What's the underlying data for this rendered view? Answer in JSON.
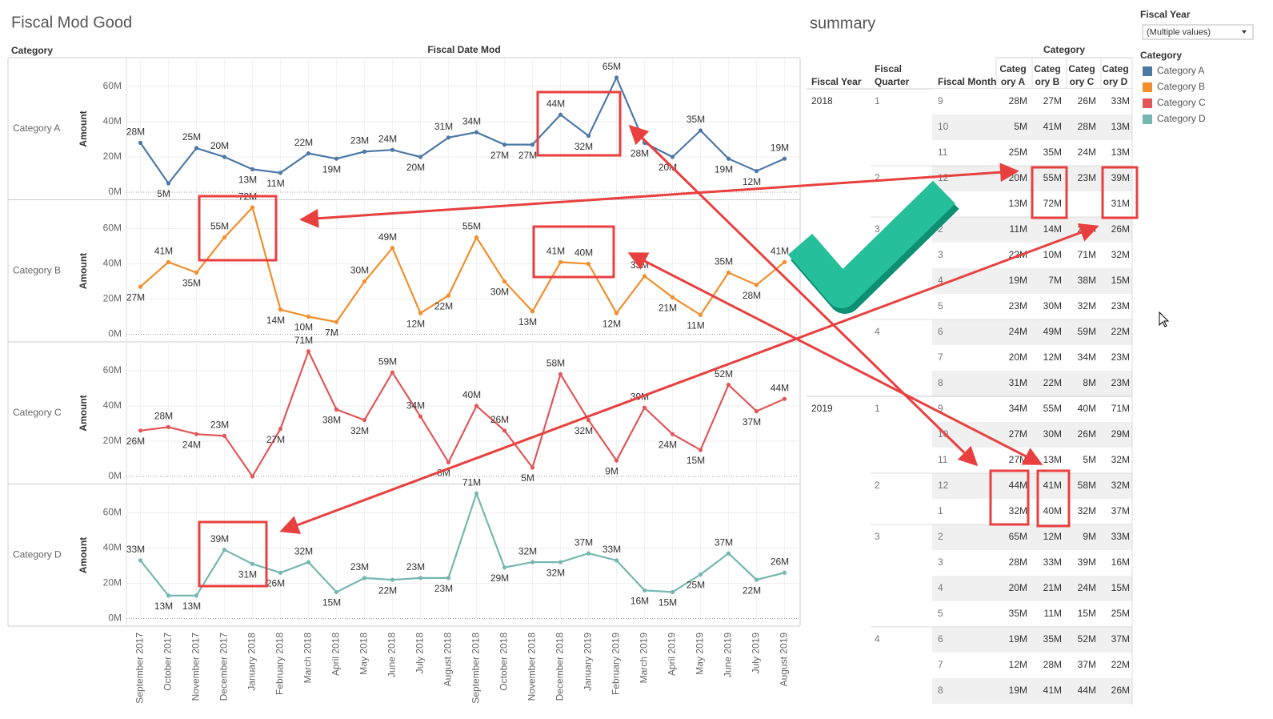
{
  "header": {
    "title": "Fiscal Mod Good",
    "row_header": "Category",
    "column_header": "Fiscal Date Mod"
  },
  "chart_data": [
    {
      "type": "line",
      "title": "Category A",
      "y_label": "Amount",
      "color": "#4e79a7",
      "categories": [
        "September 2017",
        "October 2017",
        "November 2017",
        "December 2017",
        "January 2018",
        "February 2018",
        "March 2018",
        "April 2018",
        "May 2018",
        "June 2018",
        "July 2018",
        "August 2018",
        "September 2018",
        "October 2018",
        "November 2018",
        "December 2018",
        "January 2019",
        "February 2019",
        "March 2019",
        "April 2019",
        "May 2019",
        "June 2019",
        "July 2019",
        "August 2019"
      ],
      "values": [
        28,
        5,
        25,
        20,
        13,
        11,
        22,
        19,
        23,
        24,
        20,
        31,
        34,
        27,
        27,
        44,
        32,
        65,
        28,
        20,
        35,
        19,
        12,
        19
      ],
      "value_labels": [
        "28M",
        "5M",
        "25M",
        "20M",
        "13M",
        "11M",
        "22M",
        "19M",
        "23M",
        "24M",
        "20M",
        "31M",
        "34M",
        "27M",
        "27M",
        "44M",
        "32M",
        "65M",
        "28M",
        "20M",
        "35M",
        "19M",
        "12M",
        "19M"
      ],
      "ylim": [
        0,
        75
      ],
      "yticks": [
        {
          "value": 0,
          "label": "0M"
        },
        {
          "value": 20,
          "label": "20M"
        },
        {
          "value": 40,
          "label": "40M"
        },
        {
          "value": 60,
          "label": "60M"
        }
      ]
    },
    {
      "type": "line",
      "title": "Category B",
      "y_label": "Amount",
      "color": "#f28e2b",
      "categories": [
        "September 2017",
        "October 2017",
        "November 2017",
        "December 2017",
        "January 2018",
        "February 2018",
        "March 2018",
        "April 2018",
        "May 2018",
        "June 2018",
        "July 2018",
        "August 2018",
        "September 2018",
        "October 2018",
        "November 2018",
        "December 2018",
        "January 2019",
        "February 2019",
        "March 2019",
        "April 2019",
        "May 2019",
        "June 2019",
        "July 2019",
        "August 2019"
      ],
      "values": [
        27,
        41,
        35,
        55,
        72,
        14,
        10,
        7,
        30,
        49,
        12,
        22,
        55,
        30,
        13,
        41,
        40,
        12,
        33,
        21,
        11,
        35,
        28,
        41
      ],
      "value_labels": [
        "27M",
        "41M",
        "35M",
        "55M",
        "72M",
        "14M",
        "10M",
        "7M",
        "30M",
        "49M",
        "12M",
        "22M",
        "55M",
        "30M",
        "13M",
        "41M",
        "40M",
        "12M",
        "33M",
        "21M",
        "11M",
        "35M",
        "28M",
        "41M"
      ],
      "ylim": [
        0,
        75
      ],
      "yticks": [
        {
          "value": 0,
          "label": "0M"
        },
        {
          "value": 20,
          "label": "20M"
        },
        {
          "value": 40,
          "label": "40M"
        },
        {
          "value": 60,
          "label": "60M"
        }
      ]
    },
    {
      "type": "line",
      "title": "Category C",
      "y_label": "Amount",
      "color": "#e15759",
      "categories": [
        "September 2017",
        "October 2017",
        "November 2017",
        "December 2017",
        "January 2018",
        "February 2018",
        "March 2018",
        "April 2018",
        "May 2018",
        "June 2018",
        "July 2018",
        "August 2018",
        "September 2018",
        "October 2018",
        "November 2018",
        "December 2018",
        "January 2019",
        "February 2019",
        "March 2019",
        "April 2019",
        "May 2019",
        "June 2019",
        "July 2019",
        "August 2019"
      ],
      "values": [
        26,
        28,
        24,
        23,
        0,
        27,
        71,
        38,
        32,
        59,
        34,
        8,
        40,
        26,
        5,
        58,
        32,
        9,
        39,
        24,
        15,
        52,
        37,
        44
      ],
      "value_labels": [
        "26M",
        "28M",
        "24M",
        "23M",
        null,
        "27M",
        "71M",
        "38M",
        "32M",
        "59M",
        "34M",
        "8M",
        "40M",
        "26M",
        "5M",
        "58M",
        "32M",
        "9M",
        "39M",
        "24M",
        "15M",
        "52M",
        "37M",
        "44M"
      ],
      "ylim": [
        0,
        75
      ],
      "yticks": [
        {
          "value": 0,
          "label": "0M"
        },
        {
          "value": 20,
          "label": "20M"
        },
        {
          "value": 40,
          "label": "40M"
        },
        {
          "value": 60,
          "label": "60M"
        }
      ]
    },
    {
      "type": "line",
      "title": "Category D",
      "y_label": "Amount",
      "color": "#76b7b2",
      "categories": [
        "September 2017",
        "October 2017",
        "November 2017",
        "December 2017",
        "January 2018",
        "February 2018",
        "March 2018",
        "April 2018",
        "May 2018",
        "June 2018",
        "July 2018",
        "August 2018",
        "September 2018",
        "October 2018",
        "November 2018",
        "December 2018",
        "January 2019",
        "February 2019",
        "March 2019",
        "April 2019",
        "May 2019",
        "June 2019",
        "July 2019",
        "August 2019"
      ],
      "values": [
        33,
        13,
        13,
        39,
        31,
        26,
        32,
        15,
        23,
        22,
        23,
        23,
        71,
        29,
        32,
        32,
        37,
        33,
        16,
        15,
        25,
        37,
        22,
        26
      ],
      "value_labels": [
        "33M",
        "13M",
        "13M",
        "39M",
        "31M",
        "26M",
        "32M",
        "15M",
        "23M",
        "22M",
        "23M",
        "23M",
        "71M",
        "29M",
        "32M",
        "32M",
        "37M",
        "33M",
        "16M",
        "15M",
        "25M",
        "37M",
        "22M",
        "26M"
      ],
      "ylim": [
        0,
        75
      ],
      "yticks": [
        {
          "value": 0,
          "label": "0M"
        },
        {
          "value": 20,
          "label": "20M"
        },
        {
          "value": 40,
          "label": "40M"
        },
        {
          "value": 60,
          "label": "60M"
        }
      ]
    }
  ],
  "table": {
    "title": "summary",
    "group_header": "Category",
    "columns": [
      "Fiscal Year",
      "Fiscal Quarter",
      "Fiscal Month",
      "Category A",
      "Category B",
      "Category C",
      "Category D"
    ],
    "rows": [
      [
        "2018",
        "1",
        "9",
        "28M",
        "27M",
        "26M",
        "33M"
      ],
      [
        null,
        null,
        "10",
        "5M",
        "41M",
        "28M",
        "13M"
      ],
      [
        null,
        null,
        "11",
        "25M",
        "35M",
        "24M",
        "13M"
      ],
      [
        null,
        "2",
        "12",
        "20M",
        "55M",
        "23M",
        "39M"
      ],
      [
        null,
        null,
        "1",
        "13M",
        "72M",
        null,
        "31M"
      ],
      [
        null,
        "3",
        "2",
        "11M",
        "14M",
        "27M",
        "26M"
      ],
      [
        null,
        null,
        "3",
        "22M",
        "10M",
        "71M",
        "32M"
      ],
      [
        null,
        null,
        "4",
        "19M",
        "7M",
        "38M",
        "15M"
      ],
      [
        null,
        null,
        "5",
        "23M",
        "30M",
        "32M",
        "23M"
      ],
      [
        null,
        "4",
        "6",
        "24M",
        "49M",
        "59M",
        "22M"
      ],
      [
        null,
        null,
        "7",
        "20M",
        "12M",
        "34M",
        "23M"
      ],
      [
        null,
        null,
        "8",
        "31M",
        "22M",
        "8M",
        "23M"
      ],
      [
        "2019",
        "1",
        "9",
        "34M",
        "55M",
        "40M",
        "71M"
      ],
      [
        null,
        null,
        "10",
        "27M",
        "30M",
        "26M",
        "29M"
      ],
      [
        null,
        null,
        "11",
        "27M",
        "13M",
        "5M",
        "32M"
      ],
      [
        null,
        "2",
        "12",
        "44M",
        "41M",
        "58M",
        "32M"
      ],
      [
        null,
        null,
        "1",
        "32M",
        "40M",
        "32M",
        "37M"
      ],
      [
        null,
        "3",
        "2",
        "65M",
        "12M",
        "9M",
        "33M"
      ],
      [
        null,
        null,
        "3",
        "28M",
        "33M",
        "39M",
        "16M"
      ],
      [
        null,
        null,
        "4",
        "20M",
        "21M",
        "24M",
        "15M"
      ],
      [
        null,
        null,
        "5",
        "35M",
        "11M",
        "15M",
        "25M"
      ],
      [
        null,
        "4",
        "6",
        "19M",
        "35M",
        "52M",
        "37M"
      ],
      [
        null,
        null,
        "7",
        "12M",
        "28M",
        "37M",
        "22M"
      ],
      [
        null,
        null,
        "8",
        "19M",
        "41M",
        "44M",
        "26M"
      ]
    ]
  },
  "filter": {
    "title": "Fiscal Year",
    "value": "(Multiple values)"
  },
  "legend": {
    "title": "Category",
    "items": [
      {
        "name": "Category A",
        "color": "#4e79a7"
      },
      {
        "name": "Category B",
        "color": "#f28e2b"
      },
      {
        "name": "Category C",
        "color": "#e15759"
      },
      {
        "name": "Category D",
        "color": "#76b7b2"
      }
    ]
  }
}
